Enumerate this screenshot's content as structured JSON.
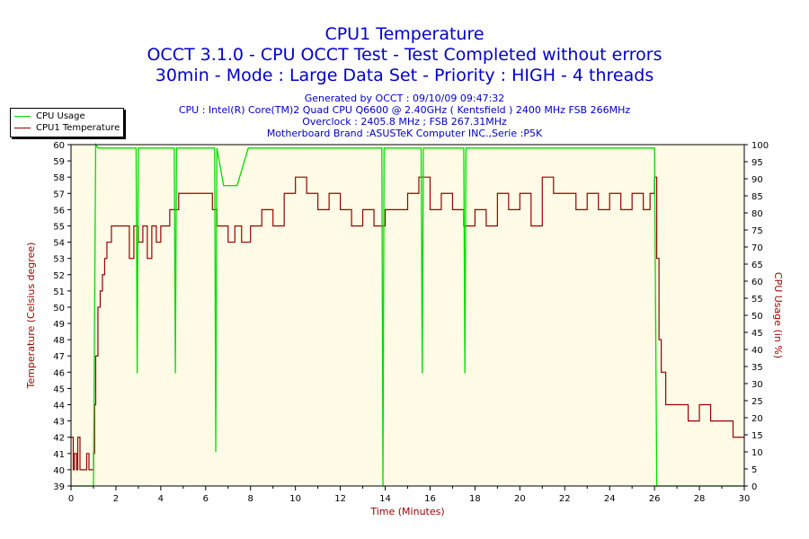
{
  "header": {
    "title": "CPU1 Temperature",
    "subtitle1": "OCCT 3.1.0 - CPU OCCT Test - Test Completed without errors",
    "subtitle2": "30min - Mode : Large Data Set - Priority : HIGH - 4 threads",
    "info": [
      "Generated by OCCT : 09/10/09 09:47:32",
      "CPU : Intel(R) Core(TM)2 Quad CPU Q6600 @ 2.40GHz ( Kentsfield ) 2400 MHz FSB 266MHz",
      "Overclock : 2405.8 MHz ; FSB 267.31MHz",
      "Motherboard Brand :ASUSTeK Computer INC.,Serie :P5K"
    ]
  },
  "legend": {
    "items": [
      {
        "label": "CPU Usage",
        "color": "#00dd00"
      },
      {
        "label": "CPU1 Temperature",
        "color": "#990000"
      }
    ]
  },
  "colors": {
    "plot_bg": "#fffbe6",
    "usage": "#00dd00",
    "temp": "#990000",
    "title": "#0000cc"
  },
  "chart_data": {
    "type": "line",
    "xlabel": "Time (Minutes)",
    "ylabel_left": "Temperature (Celsius degree)",
    "ylabel_right": "CPU Usage (in %)",
    "xlim": [
      0,
      30
    ],
    "ylim_left": [
      39,
      60
    ],
    "ylim_right": [
      0,
      100
    ],
    "x_ticks": [
      0,
      2,
      4,
      6,
      8,
      10,
      12,
      14,
      16,
      18,
      20,
      22,
      24,
      26,
      28,
      30
    ],
    "y_ticks_left": [
      39,
      40,
      41,
      42,
      43,
      44,
      45,
      46,
      47,
      48,
      49,
      50,
      51,
      52,
      53,
      54,
      55,
      56,
      57,
      58,
      59,
      60
    ],
    "y_ticks_right": [
      0,
      5,
      10,
      15,
      20,
      25,
      30,
      35,
      40,
      45,
      50,
      55,
      60,
      65,
      70,
      75,
      80,
      85,
      90,
      95,
      100
    ],
    "grid": false,
    "legend_position": "top-left",
    "series": [
      {
        "name": "CPU1 Temperature",
        "axis": "left",
        "x": [
          0,
          0.1,
          0.15,
          0.25,
          0.3,
          0.4,
          0.5,
          0.6,
          0.7,
          0.8,
          0.9,
          1.0,
          1.05,
          1.1,
          1.2,
          1.3,
          1.4,
          1.5,
          1.6,
          1.7,
          1.8,
          2.0,
          2.2,
          2.4,
          2.6,
          2.8,
          3.0,
          3.2,
          3.4,
          3.6,
          3.8,
          4.0,
          4.2,
          4.4,
          4.6,
          4.8,
          5.0,
          5.5,
          6.0,
          6.3,
          6.5,
          6.8,
          7.0,
          7.3,
          7.6,
          8.0,
          8.5,
          9.0,
          9.5,
          10.0,
          10.5,
          11.0,
          11.5,
          12.0,
          12.5,
          13.0,
          13.5,
          14.0,
          14.5,
          15.0,
          15.5,
          16.0,
          16.5,
          17.0,
          17.5,
          18.0,
          18.5,
          19.0,
          19.5,
          20.0,
          20.5,
          21.0,
          21.5,
          22.0,
          22.5,
          23.0,
          23.5,
          24.0,
          24.5,
          25.0,
          25.5,
          25.8,
          26.0,
          26.1,
          26.2,
          26.3,
          26.5,
          27.0,
          27.5,
          28.0,
          28.5,
          29.0,
          29.5,
          30.0
        ],
        "values": [
          42,
          40,
          41,
          40,
          42,
          40,
          40,
          40,
          41,
          40,
          40,
          41,
          44,
          47,
          50,
          51,
          52,
          53,
          54,
          54,
          55,
          55,
          55,
          55,
          53,
          55,
          54,
          55,
          53,
          55,
          54,
          55,
          55,
          56,
          56,
          57,
          57,
          57,
          57,
          56,
          55,
          55,
          54,
          55,
          54,
          55,
          56,
          55,
          57,
          58,
          57,
          56,
          57,
          56,
          55,
          56,
          55,
          56,
          56,
          57,
          58,
          56,
          57,
          56,
          55,
          56,
          55,
          57,
          56,
          57,
          55,
          58,
          57,
          57,
          56,
          57,
          56,
          57,
          56,
          57,
          56,
          57,
          58,
          53,
          48,
          46,
          44,
          44,
          43,
          44,
          43,
          43,
          42,
          42
        ]
      },
      {
        "name": "CPU Usage",
        "axis": "right",
        "x": [
          0,
          0.9,
          1.0,
          1.1,
          1.2,
          2.9,
          2.95,
          3.0,
          4.6,
          4.65,
          4.7,
          6.4,
          6.45,
          6.5,
          6.8,
          7.4,
          7.9,
          13.85,
          13.9,
          13.95,
          15.6,
          15.65,
          15.7,
          17.5,
          17.55,
          17.6,
          26.0,
          26.05,
          26.1,
          26.2,
          30.0
        ],
        "values": [
          0,
          0,
          0,
          100,
          99,
          99,
          33,
          99,
          99,
          33,
          99,
          99,
          10,
          99,
          88,
          88,
          99,
          99,
          0,
          99,
          99,
          33,
          99,
          99,
          33,
          99,
          99,
          50,
          0,
          0,
          0
        ]
      }
    ]
  }
}
